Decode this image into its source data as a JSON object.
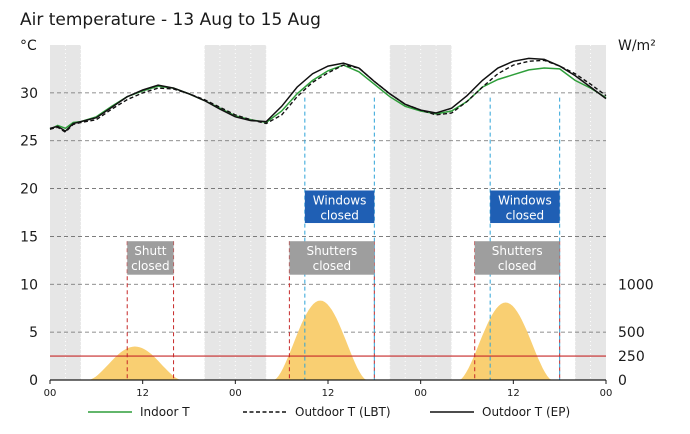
{
  "chart_data": {
    "type": "line",
    "title": "Air temperature - 13 Aug to 15 Aug",
    "ylabel_left": "°C",
    "ylabel_right": "W/m²",
    "x_range_hours": [
      0,
      72
    ],
    "ylim_left": [
      0,
      35
    ],
    "yticks_left": [
      0,
      5,
      10,
      15,
      20,
      25,
      30
    ],
    "yticks_right": [
      {
        "label": "0",
        "at_celsius": 0
      },
      {
        "label": "250",
        "at_celsius": 2.5,
        "color": "#c62828"
      },
      {
        "label": "500",
        "at_celsius": 5
      },
      {
        "label": "1000",
        "at_celsius": 10
      }
    ],
    "xticks": [
      {
        "hour": 0,
        "label": "00"
      },
      {
        "hour": 12,
        "label": "12"
      },
      {
        "hour": 24,
        "label": "00"
      },
      {
        "hour": 36,
        "label": "12"
      },
      {
        "hour": 48,
        "label": "00"
      },
      {
        "hour": 60,
        "label": "12"
      },
      {
        "hour": 72,
        "label": "00"
      }
    ],
    "grid": true,
    "night_bands_hours": [
      [
        0,
        4
      ],
      [
        20,
        28
      ],
      [
        44,
        52
      ],
      [
        68,
        72
      ]
    ],
    "threshold_line": {
      "value_wm2": 250,
      "color": "#c62828"
    },
    "series": [
      {
        "name": "Indoor T",
        "color": "#2e9e3a",
        "style": "solid",
        "x": [
          0,
          1,
          2,
          3,
          4,
          6,
          8,
          10,
          12,
          14,
          16,
          18,
          20,
          22,
          24,
          26,
          28,
          30,
          32,
          34,
          36,
          38,
          40,
          42,
          44,
          46,
          48,
          50,
          52,
          54,
          56,
          58,
          60,
          62,
          64,
          66,
          68,
          70,
          72
        ],
        "y": [
          26.2,
          26.6,
          26.3,
          26.9,
          27.0,
          27.5,
          28.6,
          29.6,
          30.2,
          30.7,
          30.5,
          29.9,
          29.2,
          28.4,
          27.6,
          27.2,
          26.9,
          28.1,
          29.9,
          31.3,
          32.3,
          32.9,
          32.2,
          30.9,
          29.6,
          28.6,
          28.1,
          27.8,
          28.1,
          29.1,
          30.6,
          31.4,
          31.9,
          32.4,
          32.6,
          32.5,
          31.3,
          30.5,
          29.5
        ]
      },
      {
        "name": "Outdoor T (LBT)",
        "color": "#111111",
        "style": "dashed",
        "x": [
          0,
          1,
          2,
          3,
          4,
          6,
          8,
          10,
          12,
          14,
          16,
          18,
          20,
          22,
          24,
          26,
          28,
          30,
          32,
          34,
          36,
          38,
          40,
          42,
          44,
          46,
          48,
          50,
          52,
          54,
          56,
          58,
          60,
          62,
          64,
          66,
          68,
          70,
          72
        ],
        "y": [
          26.2,
          26.4,
          25.9,
          26.7,
          26.9,
          27.2,
          28.3,
          29.3,
          30.0,
          30.5,
          30.4,
          29.9,
          29.3,
          28.5,
          27.7,
          27.2,
          26.8,
          27.7,
          29.6,
          31.1,
          32.1,
          32.9,
          32.6,
          31.2,
          29.9,
          28.8,
          28.2,
          27.7,
          27.9,
          29.1,
          30.6,
          32.0,
          32.9,
          33.3,
          33.4,
          32.8,
          32.0,
          30.9,
          29.7
        ]
      },
      {
        "name": "Outdoor T (EP)",
        "color": "#111111",
        "style": "solid",
        "x": [
          0,
          1,
          2,
          3,
          4,
          6,
          8,
          10,
          12,
          14,
          16,
          18,
          20,
          22,
          24,
          26,
          28,
          30,
          32,
          34,
          36,
          38,
          40,
          42,
          44,
          46,
          48,
          50,
          52,
          54,
          56,
          58,
          60,
          62,
          64,
          66,
          68,
          70,
          72
        ],
        "y": [
          26.3,
          26.5,
          26.0,
          26.8,
          27.0,
          27.4,
          28.5,
          29.6,
          30.3,
          30.8,
          30.5,
          29.9,
          29.2,
          28.3,
          27.5,
          27.1,
          27.0,
          28.6,
          30.6,
          32.0,
          32.8,
          33.1,
          32.6,
          31.2,
          29.9,
          28.8,
          28.2,
          27.9,
          28.4,
          29.7,
          31.3,
          32.6,
          33.3,
          33.6,
          33.5,
          32.8,
          31.8,
          30.6,
          29.4
        ]
      }
    ],
    "solar_irradiance": {
      "color": "#f9cf72",
      "days": [
        {
          "start": 5,
          "end": 17,
          "peak_hour": 11.5,
          "peak_wm2": 350
        },
        {
          "start": 29,
          "end": 41,
          "peak_hour": 35.5,
          "peak_wm2": 830
        },
        {
          "start": 53,
          "end": 65,
          "peak_hour": 59.5,
          "peak_wm2": 810
        }
      ]
    },
    "annotations": [
      {
        "type": "shutters",
        "label": "Shutters closed",
        "from": 10,
        "to": 16,
        "color": "#c62828",
        "box_color": "#9e9e9e",
        "box_text": [
          "Shutt",
          "closed"
        ]
      },
      {
        "type": "shutters",
        "label": "Shutters closed",
        "from": 31,
        "to": 42,
        "color": "#c62828",
        "box_color": "#9e9e9e",
        "box_text": [
          "Shutters",
          "closed"
        ]
      },
      {
        "type": "shutters",
        "label": "Shutters closed",
        "from": 55,
        "to": 66,
        "color": "#c62828",
        "box_color": "#9e9e9e",
        "box_text": [
          "Shutters",
          "closed"
        ]
      },
      {
        "type": "windows",
        "label": "Windows closed",
        "from": 33,
        "to": 42,
        "color": "#2ea3d8",
        "box_color": "#1f5fb4",
        "box_text": [
          "Windows",
          "closed"
        ]
      },
      {
        "type": "windows",
        "label": "Windows closed",
        "from": 57,
        "to": 66,
        "color": "#2ea3d8",
        "box_color": "#1f5fb4",
        "box_text": [
          "Windows",
          "closed"
        ]
      }
    ],
    "legend": {
      "placement": "bottom",
      "items": [
        {
          "label": "Indoor T",
          "color": "#2e9e3a",
          "style": "solid"
        },
        {
          "label": "Outdoor T (LBT)",
          "color": "#111111",
          "style": "dashed"
        },
        {
          "label": "Outdoor T (EP)",
          "color": "#111111",
          "style": "solid"
        }
      ]
    }
  }
}
